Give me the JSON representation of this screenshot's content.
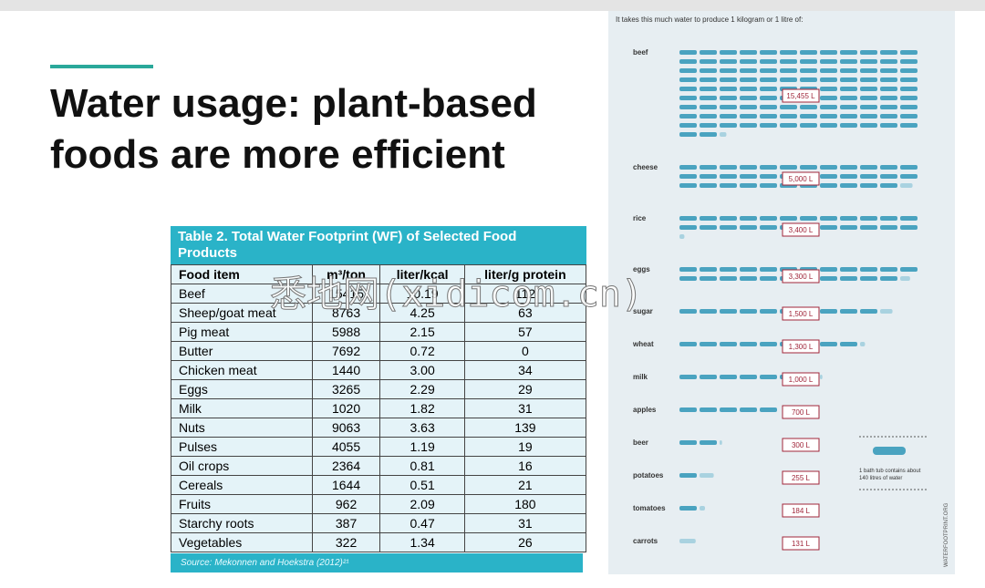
{
  "header": {
    "title": "Water usage: plant-based foods are more efficient"
  },
  "table": {
    "caption": "Table 2. Total Water Footprint (WF) of Selected Food Products",
    "columns": [
      "Food item",
      "m³/ton",
      "liter/kcal",
      "liter/g protein"
    ],
    "rows": [
      [
        "Beef",
        "15415",
        "10.19",
        "112"
      ],
      [
        "Sheep/goat meat",
        "8763",
        "4.25",
        "63"
      ],
      [
        "Pig meat",
        "5988",
        "2.15",
        "57"
      ],
      [
        "Butter",
        "7692",
        "0.72",
        "0"
      ],
      [
        "Chicken meat",
        "1440",
        "3.00",
        "34"
      ],
      [
        "Eggs",
        "3265",
        "2.29",
        "29"
      ],
      [
        "Milk",
        "1020",
        "1.82",
        "31"
      ],
      [
        "Nuts",
        "9063",
        "3.63",
        "139"
      ],
      [
        "Pulses",
        "4055",
        "1.19",
        "19"
      ],
      [
        "Oil crops",
        "2364",
        "0.81",
        "16"
      ],
      [
        "Cereals",
        "1644",
        "0.51",
        "21"
      ],
      [
        "Fruits",
        "962",
        "2.09",
        "180"
      ],
      [
        "Starchy roots",
        "387",
        "0.47",
        "31"
      ],
      [
        "Vegetables",
        "322",
        "1.34",
        "26"
      ]
    ],
    "source": "Source: Mekonnen and Hoekstra (2012)²¹"
  },
  "watermark": "悉地网(xidicom.cn)",
  "infographic": {
    "heading": "It takes this much water to produce 1 kilogram or 1 litre of:",
    "items": [
      {
        "name": "beef",
        "litres": 15455,
        "label": "15,455 L"
      },
      {
        "name": "cheese",
        "litres": 5000,
        "label": "5,000 L"
      },
      {
        "name": "rice",
        "litres": 3400,
        "label": "3,400 L"
      },
      {
        "name": "eggs",
        "litres": 3300,
        "label": "3,300 L"
      },
      {
        "name": "sugar",
        "litres": 1500,
        "label": "1,500 L"
      },
      {
        "name": "wheat",
        "litres": 1300,
        "label": "1,300 L"
      },
      {
        "name": "milk",
        "litres": 1000,
        "label": "1,000 L"
      },
      {
        "name": "apples",
        "litres": 700,
        "label": "700 L"
      },
      {
        "name": "beer",
        "litres": 300,
        "label": "300 L"
      },
      {
        "name": "potatoes",
        "litres": 255,
        "label": "255 L"
      },
      {
        "name": "tomatoes",
        "litres": 184,
        "label": "184 L"
      },
      {
        "name": "carrots",
        "litres": 131,
        "label": "131 L"
      }
    ],
    "legend": {
      "prefix": "1 bath tub contains about",
      "litres": 140,
      "suffix": "litres of water"
    },
    "credit": "WATERFOOTPRINT.ORG"
  }
}
